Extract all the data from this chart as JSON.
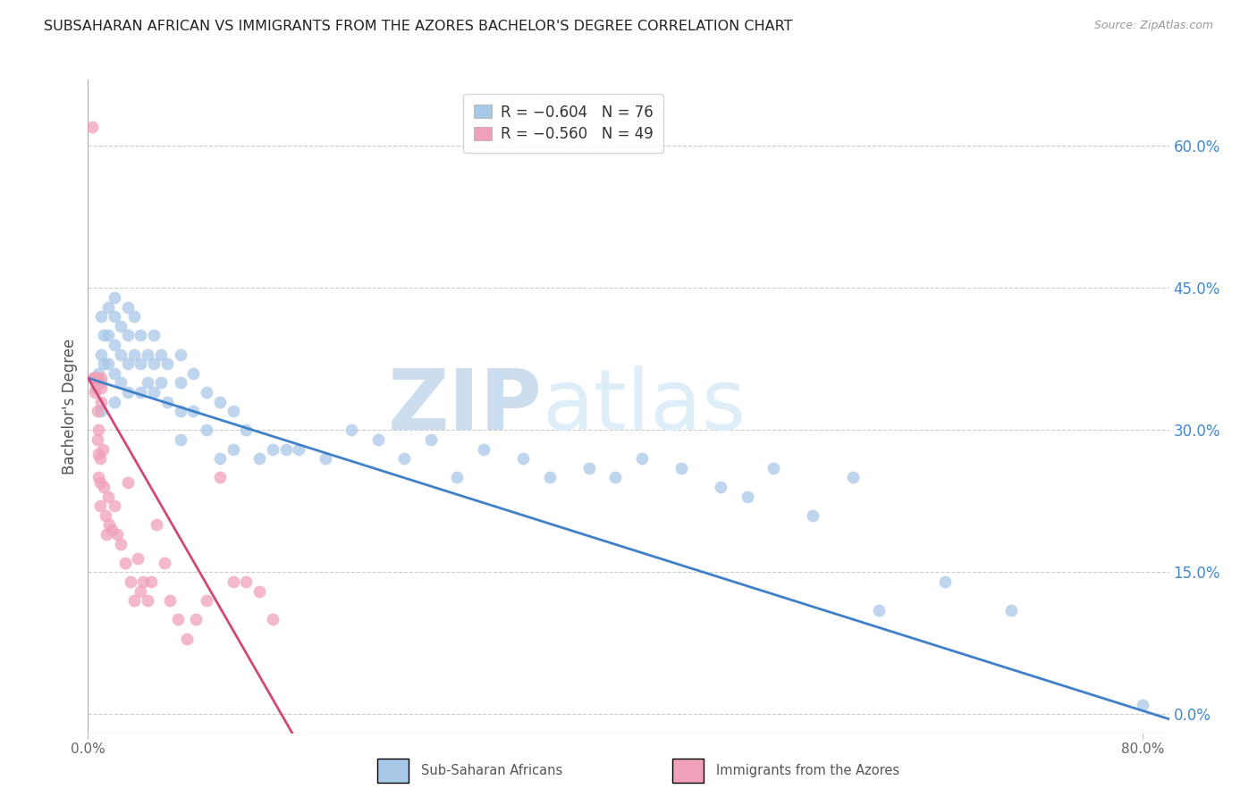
{
  "title": "SUBSAHARAN AFRICAN VS IMMIGRANTS FROM THE AZORES BACHELOR'S DEGREE CORRELATION CHART",
  "source": "Source: ZipAtlas.com",
  "ylabel": "Bachelor's Degree",
  "right_ytick_values": [
    0.0,
    0.15,
    0.3,
    0.45,
    0.6
  ],
  "right_ytick_labels": [
    "0.0%",
    "15.0%",
    "30.0%",
    "45.0%",
    "60.0%"
  ],
  "legend_blue_r": "R = −0.604",
  "legend_blue_n": "N = 76",
  "legend_pink_r": "R = −0.560",
  "legend_pink_n": "N = 49",
  "blue_color": "#a8c8e8",
  "pink_color": "#f0a0b8",
  "blue_line_color": "#4080c8",
  "pink_line_color": "#d04878",
  "watermark_zip": "ZIP",
  "watermark_atlas": "atlas",
  "xlim": [
    0.0,
    0.82
  ],
  "ylim": [
    -0.02,
    0.67
  ],
  "blue_scatter_x": [
    0.005,
    0.008,
    0.01,
    0.01,
    0.01,
    0.01,
    0.012,
    0.012,
    0.015,
    0.015,
    0.015,
    0.02,
    0.02,
    0.02,
    0.02,
    0.02,
    0.025,
    0.025,
    0.025,
    0.03,
    0.03,
    0.03,
    0.03,
    0.035,
    0.035,
    0.04,
    0.04,
    0.04,
    0.045,
    0.045,
    0.05,
    0.05,
    0.05,
    0.055,
    0.055,
    0.06,
    0.06,
    0.07,
    0.07,
    0.07,
    0.07,
    0.08,
    0.08,
    0.09,
    0.09,
    0.1,
    0.1,
    0.11,
    0.11,
    0.12,
    0.13,
    0.14,
    0.15,
    0.16,
    0.18,
    0.2,
    0.22,
    0.24,
    0.26,
    0.28,
    0.3,
    0.33,
    0.35,
    0.38,
    0.4,
    0.42,
    0.45,
    0.48,
    0.5,
    0.52,
    0.55,
    0.58,
    0.6,
    0.65,
    0.7,
    0.8
  ],
  "blue_scatter_y": [
    0.355,
    0.36,
    0.42,
    0.38,
    0.35,
    0.32,
    0.4,
    0.37,
    0.43,
    0.4,
    0.37,
    0.44,
    0.42,
    0.39,
    0.36,
    0.33,
    0.41,
    0.38,
    0.35,
    0.43,
    0.4,
    0.37,
    0.34,
    0.42,
    0.38,
    0.4,
    0.37,
    0.34,
    0.38,
    0.35,
    0.4,
    0.37,
    0.34,
    0.38,
    0.35,
    0.37,
    0.33,
    0.38,
    0.35,
    0.32,
    0.29,
    0.36,
    0.32,
    0.34,
    0.3,
    0.33,
    0.27,
    0.32,
    0.28,
    0.3,
    0.27,
    0.28,
    0.28,
    0.28,
    0.27,
    0.3,
    0.29,
    0.27,
    0.29,
    0.25,
    0.28,
    0.27,
    0.25,
    0.26,
    0.25,
    0.27,
    0.26,
    0.24,
    0.23,
    0.26,
    0.21,
    0.25,
    0.11,
    0.14,
    0.11,
    0.01
  ],
  "pink_scatter_x": [
    0.003,
    0.004,
    0.005,
    0.005,
    0.006,
    0.006,
    0.007,
    0.007,
    0.007,
    0.008,
    0.008,
    0.008,
    0.009,
    0.009,
    0.009,
    0.01,
    0.01,
    0.01,
    0.011,
    0.012,
    0.013,
    0.014,
    0.015,
    0.016,
    0.018,
    0.02,
    0.022,
    0.025,
    0.028,
    0.03,
    0.032,
    0.035,
    0.038,
    0.04,
    0.042,
    0.045,
    0.048,
    0.052,
    0.058,
    0.062,
    0.068,
    0.075,
    0.082,
    0.09,
    0.1,
    0.11,
    0.12,
    0.13,
    0.14
  ],
  "pink_scatter_y": [
    0.62,
    0.355,
    0.355,
    0.34,
    0.355,
    0.345,
    0.355,
    0.32,
    0.29,
    0.3,
    0.275,
    0.25,
    0.27,
    0.245,
    0.22,
    0.355,
    0.345,
    0.33,
    0.28,
    0.24,
    0.21,
    0.19,
    0.23,
    0.2,
    0.195,
    0.22,
    0.19,
    0.18,
    0.16,
    0.245,
    0.14,
    0.12,
    0.165,
    0.13,
    0.14,
    0.12,
    0.14,
    0.2,
    0.16,
    0.12,
    0.1,
    0.08,
    0.1,
    0.12,
    0.25,
    0.14,
    0.14,
    0.13,
    0.1
  ],
  "blue_line_x0": 0.0,
  "blue_line_x1": 0.82,
  "blue_line_y0": 0.355,
  "blue_line_y1": -0.005,
  "pink_line_x0": 0.0,
  "pink_line_x1": 0.155,
  "pink_line_y0": 0.355,
  "pink_line_y1": -0.02
}
